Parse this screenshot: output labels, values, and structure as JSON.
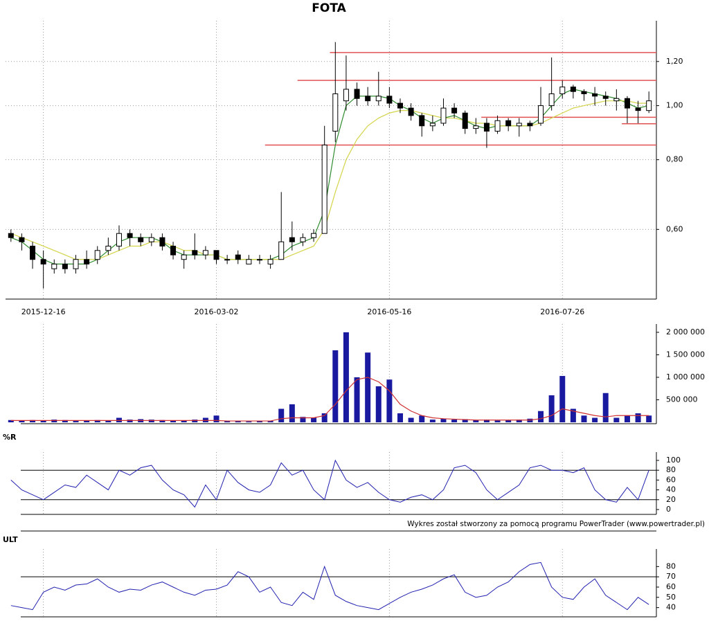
{
  "chart_data": [
    {
      "type": "candlestick",
      "title": "FOTA",
      "categories": [
        null,
        null,
        null,
        "2015-12-16",
        null,
        null,
        null,
        null,
        null,
        null,
        null,
        null,
        null,
        null,
        null,
        null,
        null,
        null,
        null,
        "2016-03-02",
        null,
        null,
        null,
        null,
        null,
        null,
        null,
        null,
        null,
        null,
        null,
        null,
        null,
        null,
        null,
        "2016-05-16",
        null,
        null,
        null,
        null,
        null,
        null,
        null,
        null,
        null,
        null,
        null,
        null,
        null,
        null,
        null,
        "2016-07-26",
        null,
        null,
        null,
        null,
        null,
        null,
        null,
        null
      ],
      "open": [
        0.59,
        0.58,
        0.56,
        0.53,
        0.51,
        0.52,
        0.51,
        0.53,
        0.53,
        0.55,
        0.56,
        0.59,
        0.58,
        0.57,
        0.58,
        0.56,
        0.53,
        0.55,
        0.54,
        0.55,
        0.53,
        0.54,
        0.52,
        0.53,
        0.52,
        0.53,
        0.58,
        0.57,
        0.58,
        0.59,
        0.9,
        1.02,
        1.07,
        1.04,
        1.02,
        1.04,
        1.01,
        0.99,
        0.96,
        0.92,
        0.93,
        0.99,
        0.97,
        0.91,
        0.93,
        0.9,
        0.94,
        0.92,
        0.93,
        0.93,
        1.0,
        1.05,
        1.08,
        1.06,
        1.05,
        1.04,
        1.02,
        1.03,
        0.99,
        0.98
      ],
      "high": [
        0.6,
        0.59,
        0.57,
        0.55,
        0.53,
        0.53,
        0.54,
        0.55,
        0.56,
        0.58,
        0.61,
        0.6,
        0.59,
        0.59,
        0.59,
        0.57,
        0.55,
        0.59,
        0.56,
        0.55,
        0.54,
        0.55,
        0.54,
        0.54,
        0.54,
        0.7,
        0.62,
        0.59,
        0.6,
        0.92,
        1.3,
        1.23,
        1.1,
        1.08,
        1.15,
        1.08,
        1.03,
        1.01,
        0.97,
        0.96,
        1.03,
        1.01,
        0.98,
        0.95,
        0.95,
        0.96,
        0.95,
        0.95,
        0.94,
        1.08,
        1.22,
        1.11,
        1.09,
        1.07,
        1.08,
        1.06,
        1.07,
        1.04,
        1.02,
        1.06
      ],
      "low": [
        0.57,
        0.55,
        0.51,
        0.47,
        0.5,
        0.5,
        0.5,
        0.51,
        0.52,
        0.54,
        0.55,
        0.56,
        0.56,
        0.56,
        0.55,
        0.53,
        0.51,
        0.53,
        0.53,
        0.52,
        0.52,
        0.52,
        0.52,
        0.52,
        0.51,
        0.53,
        0.55,
        0.56,
        0.57,
        0.59,
        0.86,
        0.98,
        1.0,
        1.0,
        1.0,
        0.99,
        0.97,
        0.94,
        0.88,
        0.9,
        0.92,
        0.95,
        0.89,
        0.89,
        0.84,
        0.89,
        0.9,
        0.88,
        0.9,
        0.92,
        0.98,
        1.03,
        1.03,
        1.02,
        1.0,
        1.0,
        0.98,
        0.93,
        0.93,
        0.97
      ],
      "close": [
        0.58,
        0.57,
        0.53,
        0.52,
        0.52,
        0.51,
        0.53,
        0.52,
        0.55,
        0.56,
        0.59,
        0.58,
        0.57,
        0.58,
        0.56,
        0.54,
        0.54,
        0.54,
        0.55,
        0.53,
        0.53,
        0.53,
        0.53,
        0.53,
        0.53,
        0.57,
        0.57,
        0.58,
        0.59,
        0.85,
        1.05,
        1.07,
        1.03,
        1.02,
        1.04,
        1.01,
        0.99,
        0.96,
        0.92,
        0.93,
        0.99,
        0.97,
        0.91,
        0.92,
        0.9,
        0.94,
        0.92,
        0.93,
        0.92,
        1.0,
        1.05,
        1.08,
        1.06,
        1.05,
        1.04,
        1.03,
        1.03,
        0.99,
        0.98,
        1.02
      ],
      "series": [
        {
          "color": "#2e8b2e",
          "values": [
            0.58,
            0.57,
            0.55,
            0.53,
            0.52,
            0.52,
            0.52,
            0.52,
            0.53,
            0.55,
            0.57,
            0.58,
            0.58,
            0.58,
            0.57,
            0.55,
            0.54,
            0.54,
            0.54,
            0.54,
            0.53,
            0.53,
            0.53,
            0.53,
            0.53,
            0.54,
            0.56,
            0.57,
            0.58,
            0.65,
            0.85,
            1.0,
            1.04,
            1.04,
            1.04,
            1.03,
            1.0,
            0.98,
            0.95,
            0.93,
            0.95,
            0.96,
            0.94,
            0.92,
            0.91,
            0.92,
            0.92,
            0.92,
            0.92,
            0.95,
            1.0,
            1.05,
            1.07,
            1.06,
            1.05,
            1.04,
            1.03,
            1.01,
            0.99,
            1.0
          ]
        },
        {
          "color": "#d4d44a",
          "values": [
            0.59,
            0.58,
            0.57,
            0.56,
            0.55,
            0.54,
            0.53,
            0.53,
            0.53,
            0.54,
            0.55,
            0.56,
            0.56,
            0.57,
            0.57,
            0.56,
            0.55,
            0.55,
            0.54,
            0.54,
            0.53,
            0.53,
            0.53,
            0.53,
            0.53,
            0.53,
            0.54,
            0.55,
            0.56,
            0.6,
            0.7,
            0.8,
            0.87,
            0.92,
            0.95,
            0.97,
            0.98,
            0.98,
            0.97,
            0.96,
            0.95,
            0.95,
            0.94,
            0.93,
            0.93,
            0.92,
            0.92,
            0.92,
            0.92,
            0.93,
            0.95,
            0.97,
            0.99,
            1.0,
            1.01,
            1.02,
            1.02,
            1.02,
            1.01,
            1.01
          ]
        }
      ],
      "levels": [
        {
          "value": 1.245,
          "from": 30
        },
        {
          "value": 1.11,
          "from": 27
        },
        {
          "value": 0.953,
          "from": 44
        },
        {
          "value": 0.928,
          "from": 57
        },
        {
          "value": 0.85,
          "from": 24
        }
      ],
      "level_color": "#e05050",
      "log_scale": true,
      "ylim": [
        0.45,
        1.36
      ],
      "yticks": [
        {
          "value": 0.6,
          "label": "0,60"
        },
        {
          "value": 0.8,
          "label": "0,80"
        },
        {
          "value": 1.0,
          "label": "1,00"
        },
        {
          "value": 1.2,
          "label": "1,20"
        }
      ],
      "grid": true
    },
    {
      "type": "bar",
      "color": "#1a1aa0",
      "line_color": "#d03030",
      "values": [
        50000,
        40000,
        50000,
        40000,
        60000,
        50000,
        30000,
        40000,
        50000,
        40000,
        100000,
        60000,
        70000,
        60000,
        50000,
        40000,
        40000,
        60000,
        100000,
        150000,
        30000,
        30000,
        20000,
        30000,
        30000,
        300000,
        400000,
        120000,
        100000,
        200000,
        1600000,
        2000000,
        1000000,
        1550000,
        800000,
        950000,
        200000,
        100000,
        150000,
        60000,
        80000,
        60000,
        70000,
        50000,
        60000,
        40000,
        50000,
        60000,
        80000,
        250000,
        600000,
        1030000,
        300000,
        150000,
        100000,
        650000,
        100000,
        150000,
        200000,
        150000
      ],
      "average": [
        40000,
        40000,
        40000,
        40000,
        40000,
        40000,
        40000,
        40000,
        40000,
        40000,
        40000,
        40000,
        40000,
        40000,
        40000,
        40000,
        40000,
        40000,
        40000,
        40000,
        30000,
        30000,
        30000,
        30000,
        30000,
        80000,
        100000,
        100000,
        100000,
        150000,
        400000,
        700000,
        950000,
        1000000,
        900000,
        700000,
        400000,
        250000,
        150000,
        100000,
        80000,
        70000,
        60000,
        50000,
        50000,
        50000,
        50000,
        50000,
        50000,
        80000,
        150000,
        300000,
        250000,
        200000,
        150000,
        120000,
        150000,
        150000,
        150000,
        150000
      ],
      "ylim": [
        0,
        2000000
      ],
      "yticks": [
        {
          "value": 500000,
          "label": "500 000"
        },
        {
          "value": 1000000,
          "label": "1 000 000"
        },
        {
          "value": 1500000,
          "label": "1 500 000"
        },
        {
          "value": 2000000,
          "label": "2 000 000"
        }
      ]
    },
    {
      "type": "line",
      "title": "%R",
      "color": "#2020b0",
      "values": [
        60,
        40,
        30,
        20,
        35,
        50,
        45,
        70,
        55,
        40,
        80,
        70,
        85,
        90,
        60,
        40,
        30,
        5,
        50,
        20,
        80,
        55,
        40,
        35,
        50,
        95,
        70,
        80,
        40,
        20,
        100,
        60,
        45,
        55,
        35,
        20,
        15,
        25,
        30,
        20,
        40,
        85,
        90,
        75,
        40,
        20,
        35,
        50,
        85,
        90,
        80,
        80,
        75,
        85,
        40,
        20,
        15,
        45,
        20,
        80
      ],
      "ylim": [
        0,
        100
      ],
      "yticks": [
        0,
        20,
        40,
        60,
        80,
        100
      ],
      "hlines": [
        20,
        80
      ],
      "annotation": "Wykres został stworzony za pomocą programu PowerTrader (www.powertrader.pl)"
    },
    {
      "type": "line",
      "title": "ULT",
      "color": "#2020b0",
      "values": [
        42,
        40,
        38,
        55,
        60,
        57,
        62,
        63,
        68,
        60,
        55,
        58,
        57,
        62,
        65,
        60,
        55,
        52,
        57,
        58,
        62,
        75,
        70,
        55,
        60,
        45,
        42,
        55,
        48,
        80,
        52,
        46,
        42,
        40,
        38,
        44,
        50,
        55,
        58,
        62,
        68,
        72,
        55,
        50,
        52,
        60,
        65,
        75,
        82,
        84,
        60,
        50,
        48,
        60,
        68,
        52,
        45,
        38,
        50,
        43
      ],
      "ylim": [
        31,
        89
      ],
      "yticks": [
        40,
        50,
        60,
        70,
        80
      ],
      "hlines": [
        70
      ]
    }
  ]
}
